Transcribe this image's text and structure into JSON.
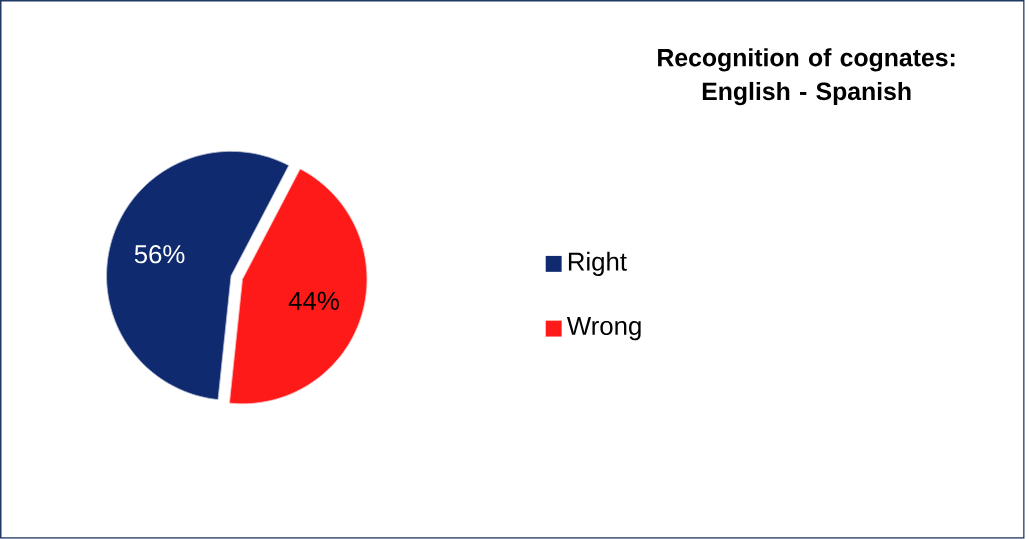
{
  "chart_data": {
    "type": "pie",
    "title": "Recognition of cognates: English - Spanish",
    "categories": [
      "Right",
      "Wrong"
    ],
    "values": [
      56,
      44
    ],
    "value_labels": [
      "56%",
      "44%"
    ],
    "colors": [
      "#0f2a6e",
      "#ff1a1a"
    ],
    "legend": "right"
  }
}
